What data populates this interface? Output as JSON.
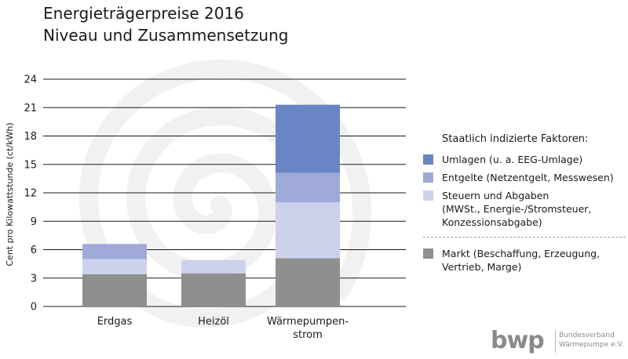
{
  "title": {
    "line1": "Energieträgerpreise 2016",
    "line2": "Niveau und Zusammensetzung"
  },
  "chart_data": {
    "type": "bar",
    "stacked": true,
    "categories": [
      "Erdgas",
      "Heizöl",
      "Wärmepumpen-\nstrom"
    ],
    "ylabel": "Cent pro Kilowattstunde (ct/kWh)",
    "ylim": [
      0,
      24
    ],
    "yticks": [
      0,
      3,
      6,
      9,
      12,
      15,
      18,
      21,
      24
    ],
    "grid": true,
    "legend_position": "right",
    "series": [
      {
        "key": "markt",
        "color": "#8f8f8f",
        "values": [
          3.4,
          3.5,
          5.1
        ]
      },
      {
        "key": "steuern",
        "color": "#ccd2ec",
        "values": [
          1.6,
          1.4,
          5.9
        ]
      },
      {
        "key": "entgelte",
        "color": "#9faad9",
        "values": [
          1.6,
          0.0,
          3.1
        ]
      },
      {
        "key": "umlagen",
        "color": "#6a85c4",
        "values": [
          0.0,
          0.0,
          7.2
        ]
      }
    ]
  },
  "legend": {
    "heading": "Staatlich indizierte Faktoren:",
    "umlagen": "Umlagen (u. a. EEG-Umlage)",
    "entgelte": "Entgelte (Netzentgelt, Messwesen)",
    "steuern": "Steuern und Abgaben\n(MWSt., Energie-/Stromsteuer,\nKonzessionsabgabe)",
    "markt": "Markt (Beschaffung, Erzeugung,\nVertrieb, Marge)"
  },
  "logo": {
    "mark": "bwp",
    "org_line1": "Bundesverband",
    "org_line2": "Wärmepumpe e.V."
  },
  "colors": {
    "grid": "#1a1a1a",
    "watermark": "#f1f1f1"
  }
}
